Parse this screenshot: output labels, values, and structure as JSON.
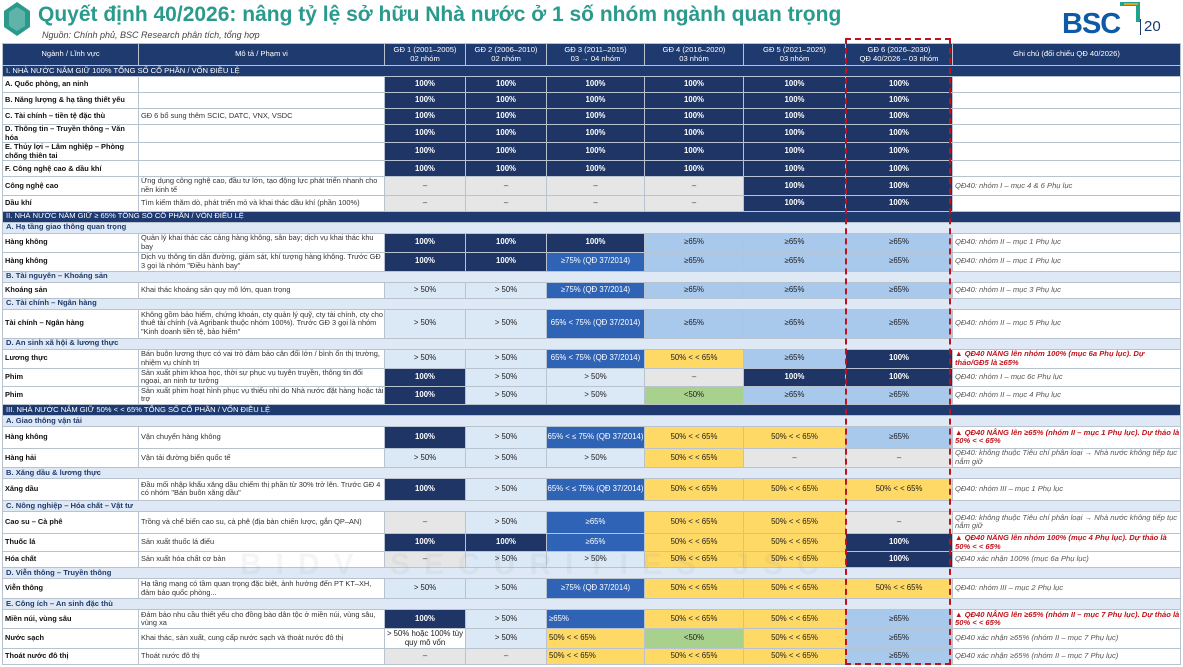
{
  "header": {
    "title": "Quyết định 40/2026: nâng tỷ lệ sở hữu Nhà nước ở 1 số nhóm ngành quan trọng",
    "source": "Nguồn: Chính phủ, BSC Research phân tích, tổng hợp",
    "logo_text": "BSC",
    "page_number": "20",
    "watermark": "BIDV SECURITIES JSC"
  },
  "colors": {
    "title": "#2a9a8c",
    "header_bg": "#1f3a6e",
    "navy": "#1e3566",
    "blue": "#2f63b5",
    "light_blue": "#a8c8ec",
    "yellow": "#ffd966",
    "green": "#a9d18e",
    "highlight_border": "#c0121b"
  },
  "columns": [
    {
      "line1": "Ngành / Lĩnh vực",
      "line2": ""
    },
    {
      "line1": "Mô tả / Phạm vi",
      "line2": ""
    },
    {
      "line1": "GĐ 1 (2001–2005)",
      "line2": "02 nhóm"
    },
    {
      "line1": "GĐ 2 (2006–2010)",
      "line2": "02 nhóm"
    },
    {
      "line1": "GĐ 3 (2011–2015)",
      "line2": "03 → 04 nhóm"
    },
    {
      "line1": "GĐ 4 (2016–2020)",
      "line2": "03 nhóm"
    },
    {
      "line1": "GĐ 5 (2021–2025)",
      "line2": "03 nhóm"
    },
    {
      "line1": "GĐ 6 (2026–2030)",
      "line2": "QĐ 40/2026 – 03 nhóm"
    },
    {
      "line1": "Ghi chú (đối chiếu QĐ 40/2026)",
      "line2": ""
    }
  ],
  "rows": [
    {
      "type": "sec",
      "text": "I. NHÀ NƯỚC NẮM GIỮ 100% TỔNG SỐ CỔ PHẦN / VỐN ĐIỀU LỆ"
    },
    {
      "type": "row",
      "name": "A. Quốc phòng, an ninh",
      "desc": "",
      "cells": [
        [
          "100%",
          "navy"
        ],
        [
          "100%",
          "navy"
        ],
        [
          "100%",
          "navy"
        ],
        [
          "100%",
          "navy"
        ],
        [
          "100%",
          "navy"
        ],
        [
          "100%",
          "navy"
        ]
      ],
      "note": "",
      "red": false
    },
    {
      "type": "row",
      "name": "B. Năng lượng & hạ tầng thiết yếu",
      "desc": "",
      "cells": [
        [
          "100%",
          "navy"
        ],
        [
          "100%",
          "navy"
        ],
        [
          "100%",
          "navy"
        ],
        [
          "100%",
          "navy"
        ],
        [
          "100%",
          "navy"
        ],
        [
          "100%",
          "navy"
        ]
      ],
      "note": "",
      "red": false
    },
    {
      "type": "row",
      "name": "C. Tài chính – tiền tệ đặc thù",
      "desc": "GĐ 6 bổ sung thêm SCIC, DATC, VNX, VSDC",
      "cells": [
        [
          "100%",
          "navy"
        ],
        [
          "100%",
          "navy"
        ],
        [
          "100%",
          "navy"
        ],
        [
          "100%",
          "navy"
        ],
        [
          "100%",
          "navy"
        ],
        [
          "100%",
          "navy"
        ]
      ],
      "note": "",
      "red": false
    },
    {
      "type": "row",
      "name": "D. Thông tin – Truyền thông – Văn hóa",
      "desc": "",
      "cells": [
        [
          "100%",
          "navy"
        ],
        [
          "100%",
          "navy"
        ],
        [
          "100%",
          "navy"
        ],
        [
          "100%",
          "navy"
        ],
        [
          "100%",
          "navy"
        ],
        [
          "100%",
          "navy"
        ]
      ],
      "note": "",
      "red": false
    },
    {
      "type": "row",
      "name": "E. Thủy lợi – Lâm nghiệp – Phòng chống thiên tai",
      "desc": "",
      "cells": [
        [
          "100%",
          "navy"
        ],
        [
          "100%",
          "navy"
        ],
        [
          "100%",
          "navy"
        ],
        [
          "100%",
          "navy"
        ],
        [
          "100%",
          "navy"
        ],
        [
          "100%",
          "navy"
        ]
      ],
      "note": "",
      "red": false
    },
    {
      "type": "row",
      "name": "F. Công nghệ cao & dầu khí",
      "desc": "",
      "cells": [
        [
          "100%",
          "navy"
        ],
        [
          "100%",
          "navy"
        ],
        [
          "100%",
          "navy"
        ],
        [
          "100%",
          "navy"
        ],
        [
          "100%",
          "navy"
        ],
        [
          "100%",
          "navy"
        ]
      ],
      "note": "",
      "red": false
    },
    {
      "type": "row",
      "name": "Công nghệ cao",
      "desc": "Ứng dụng công nghệ cao, đầu tư lớn, tạo động lực phát triển nhanh cho nền kinh tế",
      "cells": [
        [
          "–",
          "grey"
        ],
        [
          "–",
          "grey"
        ],
        [
          "–",
          "grey"
        ],
        [
          "–",
          "grey"
        ],
        [
          "100%",
          "navy"
        ],
        [
          "100%",
          "navy"
        ]
      ],
      "note": "QĐ40: nhóm I – mục 4 & 6 Phụ lục",
      "red": false
    },
    {
      "type": "row",
      "name": "Dầu khí",
      "desc": "Tìm kiếm thăm dò, phát triển mỏ và khai thác dầu khí (phần 100%)",
      "cells": [
        [
          "–",
          "grey"
        ],
        [
          "–",
          "grey"
        ],
        [
          "–",
          "grey"
        ],
        [
          "–",
          "grey"
        ],
        [
          "100%",
          "navy"
        ],
        [
          "100%",
          "navy"
        ]
      ],
      "note": "",
      "red": false
    },
    {
      "type": "sec",
      "text": "II. NHÀ NƯỚC NẮM GIỮ ≥ 65% TỔNG SỐ CỔ PHẦN / VỐN ĐIỀU LỆ"
    },
    {
      "type": "sub",
      "text": "A. Hạ tầng giao thông quan trọng"
    },
    {
      "type": "row",
      "name": "Hàng không",
      "desc": "Quản lý khai thác các cảng hàng không, sân bay; dịch vụ khai thác khu bay",
      "cells": [
        [
          "100%",
          "navy"
        ],
        [
          "100%",
          "navy"
        ],
        [
          "100%",
          "navy"
        ],
        [
          "≥65%",
          "lblue"
        ],
        [
          "≥65%",
          "lblue"
        ],
        [
          "≥65%",
          "lblue"
        ]
      ],
      "note": "QĐ40: nhóm II – mục 1 Phụ lục",
      "red": false
    },
    {
      "type": "row",
      "name": "Hàng không",
      "desc": "Dịch vụ thông tin dẫn đường, giám sát, khí tượng hàng không. Trước GĐ 3 gọi là nhóm \"Điều hành bay\"",
      "cells": [
        [
          "100%",
          "navy"
        ],
        [
          "100%",
          "navy"
        ],
        [
          "≥75% (QĐ 37/2014)",
          "blue"
        ],
        [
          "≥65%",
          "lblue"
        ],
        [
          "≥65%",
          "lblue"
        ],
        [
          "≥65%",
          "lblue"
        ]
      ],
      "note": "QĐ40: nhóm II – mục 1 Phụ lục",
      "red": false
    },
    {
      "type": "sub",
      "text": "B. Tài nguyên – Khoáng sản"
    },
    {
      "type": "row",
      "name": "Khoáng sản",
      "desc": "Khai thác khoáng sản quy mô lớn, quan trọng",
      "cells": [
        [
          "> 50%",
          "pale"
        ],
        [
          "> 50%",
          "pale"
        ],
        [
          "≥75% (QĐ 37/2014)",
          "blue"
        ],
        [
          "≥65%",
          "lblue"
        ],
        [
          "≥65%",
          "lblue"
        ],
        [
          "≥65%",
          "lblue"
        ]
      ],
      "note": "QĐ40: nhóm II – mục 3 Phụ lục",
      "red": false
    },
    {
      "type": "sub",
      "text": "C. Tài chính – Ngân hàng"
    },
    {
      "type": "row",
      "name": "Tài chính – Ngân hàng",
      "desc": "Không gồm bảo hiểm, chứng khoán, cty quản lý quỹ, cty tài chính, cty cho thuê tài chính (và Agribank thuộc nhóm 100%). Trước GĐ 3 gọi là nhóm \"Kinh doanh tiền tệ, bảo hiểm\"",
      "cells": [
        [
          "> 50%",
          "pale"
        ],
        [
          "> 50%",
          "pale"
        ],
        [
          "65% < 75% (QĐ 37/2014)",
          "blue"
        ],
        [
          "≥65%",
          "lblue"
        ],
        [
          "≥65%",
          "lblue"
        ],
        [
          "≥65%",
          "lblue"
        ]
      ],
      "note": "QĐ40: nhóm II – mục 5 Phụ lục",
      "red": false
    },
    {
      "type": "sub",
      "text": "D. An sinh xã hội & lương thực"
    },
    {
      "type": "row",
      "name": "Lương thực",
      "desc": "Bán buôn lương thực có vai trò đảm bảo cân đối lớn / bình ổn thị trường, nhiệm vụ chính trị",
      "cells": [
        [
          "> 50%",
          "pale"
        ],
        [
          "> 50%",
          "pale"
        ],
        [
          "65% < 75% (QĐ 37/2014)",
          "blue"
        ],
        [
          "50% < < 65%",
          "yellow"
        ],
        [
          "≥65%",
          "lblue"
        ],
        [
          "100%",
          "navy"
        ]
      ],
      "note": "▲ QĐ40 NÂNG lên nhóm 100% (mục 6a Phụ lục). Dự thảo/GĐ5 là ≥65%",
      "red": true
    },
    {
      "type": "row",
      "name": "Phim",
      "desc": "Sản xuất phim khoa học, thời sự phục vụ tuyên truyền, thông tin đối ngoại, an ninh tư tưởng",
      "cells": [
        [
          "100%",
          "navy"
        ],
        [
          "> 50%",
          "pale"
        ],
        [
          "> 50%",
          "pale"
        ],
        [
          "–",
          "grey"
        ],
        [
          "100%",
          "navy"
        ],
        [
          "100%",
          "navy"
        ]
      ],
      "note": "QĐ40: nhóm I – mục 6c Phụ lục",
      "red": false
    },
    {
      "type": "row",
      "name": "Phim",
      "desc": "Sản xuất phim hoạt hình phục vụ thiếu nhi do Nhà nước đặt hàng hoặc tài trợ",
      "cells": [
        [
          "100%",
          "navy"
        ],
        [
          "> 50%",
          "pale"
        ],
        [
          "> 50%",
          "pale"
        ],
        [
          "<50%",
          "green"
        ],
        [
          "≥65%",
          "lblue"
        ],
        [
          "≥65%",
          "lblue"
        ]
      ],
      "note": "QĐ40: nhóm II – mục 4 Phụ lục",
      "red": false
    },
    {
      "type": "sec",
      "text": "III. NHÀ NƯỚC NẮM GIỮ 50% < < 65% TỔNG SỐ CỔ PHẦN / VỐN ĐIỀU LỆ"
    },
    {
      "type": "sub",
      "text": "A. Giao thông vận tải"
    },
    {
      "type": "row",
      "name": "Hàng không",
      "desc": "Vận chuyển hàng không",
      "cells": [
        [
          "100%",
          "navy"
        ],
        [
          "> 50%",
          "pale"
        ],
        [
          "65% < ≤ 75% (QĐ 37/2014)",
          "blue"
        ],
        [
          "50% < < 65%",
          "yellow"
        ],
        [
          "50% < < 65%",
          "yellow"
        ],
        [
          "≥65%",
          "lblue"
        ]
      ],
      "note": "▲ QĐ40 NÂNG lên ≥65% (nhóm II – mục 1 Phụ lục). Dự thảo là 50% < < 65%",
      "red": true
    },
    {
      "type": "row",
      "name": "Hàng hải",
      "desc": "Vận tải đường biển quốc tế",
      "cells": [
        [
          "> 50%",
          "pale"
        ],
        [
          "> 50%",
          "pale"
        ],
        [
          "> 50%",
          "pale"
        ],
        [
          "50% < < 65%",
          "yellow"
        ],
        [
          "–",
          "grey"
        ],
        [
          "–",
          "grey"
        ]
      ],
      "note": "QĐ40: không thuộc Tiêu chí phân loại → Nhà nước không tiếp tục nắm giữ",
      "red": false
    },
    {
      "type": "sub",
      "text": "B. Xăng dầu & lương thực"
    },
    {
      "type": "row",
      "name": "Xăng dầu",
      "desc": "Đầu mối nhập khẩu xăng dầu chiếm thị phần từ 30% trở lên. Trước GĐ 4 có nhóm \"Bán buôn xăng dầu\"",
      "cells": [
        [
          "100%",
          "navy"
        ],
        [
          "> 50%",
          "pale"
        ],
        [
          "65% < ≤ 75% (QĐ 37/2014)",
          "blue"
        ],
        [
          "50% < < 65%",
          "yellow"
        ],
        [
          "50% < < 65%",
          "yellow"
        ],
        [
          "50% < < 65%",
          "yellow"
        ]
      ],
      "note": "QĐ40: nhóm III – mục 1 Phụ lục",
      "red": false
    },
    {
      "type": "sub",
      "text": "C. Nông nghiệp – Hóa chất – Vật tư"
    },
    {
      "type": "row",
      "name": "Cao su – Cà phê",
      "desc": "Trồng và chế biến cao su, cà phê (địa bàn chiến lược, gắn QP–AN)",
      "cells": [
        [
          "–",
          "grey"
        ],
        [
          "> 50%",
          "pale"
        ],
        [
          "≥65%",
          "blue"
        ],
        [
          "50% < < 65%",
          "yellow"
        ],
        [
          "50% < < 65%",
          "yellow"
        ],
        [
          "–",
          "grey"
        ]
      ],
      "note": "QĐ40: không thuộc Tiêu chí phân loại → Nhà nước không tiếp tục nắm giữ",
      "red": false
    },
    {
      "type": "row",
      "name": "Thuốc lá",
      "desc": "Sản xuất thuốc lá điếu",
      "cells": [
        [
          "100%",
          "navy"
        ],
        [
          "100%",
          "navy"
        ],
        [
          "≥65%",
          "blue"
        ],
        [
          "50% < < 65%",
          "yellow"
        ],
        [
          "50% < < 65%",
          "yellow"
        ],
        [
          "100%",
          "navy"
        ]
      ],
      "note": "▲ QĐ40 NÂNG lên nhóm 100% (mục 4 Phụ lục). Dự thảo là 50% < < 65%",
      "red": true
    },
    {
      "type": "row",
      "name": "Hóa chất",
      "desc": "Sản xuất hóa chất cơ bản",
      "cells": [
        [
          "–",
          "grey"
        ],
        [
          "> 50%",
          "pale"
        ],
        [
          "> 50%",
          "pale"
        ],
        [
          "50% < < 65%",
          "yellow"
        ],
        [
          "50% < < 65%",
          "yellow"
        ],
        [
          "100%",
          "navy"
        ]
      ],
      "note": "QĐ40 xác nhận 100% (mục 6a Phụ lục)",
      "red": false
    },
    {
      "type": "sub",
      "text": "D. Viễn thông – Truyền thông"
    },
    {
      "type": "row",
      "name": "Viễn thông",
      "desc": "Hạ tầng mạng có tầm quan trọng đặc biệt, ảnh hưởng đến PT KT–XH, đảm bảo quốc phòng...",
      "cells": [
        [
          "> 50%",
          "pale"
        ],
        [
          "> 50%",
          "pale"
        ],
        [
          "≥75% (QĐ 37/2014)",
          "blue"
        ],
        [
          "50% < < 65%",
          "yellow"
        ],
        [
          "50% < < 65%",
          "yellow"
        ],
        [
          "50% < < 65%",
          "yellow"
        ]
      ],
      "note": "QĐ40: nhóm III – mục 2 Phụ lục",
      "red": false
    },
    {
      "type": "sub",
      "text": "E. Công ích – An sinh đặc thù"
    },
    {
      "type": "row",
      "name": "Miền núi, vùng sâu",
      "desc": "Đảm bảo nhu cầu thiết yếu cho đồng bào dân tộc ở miền núi, vùng sâu, vùng xa",
      "cells": [
        [
          "100%",
          "navy"
        ],
        [
          "> 50%",
          "pale"
        ],
        [
          "≥65%",
          "blue-l"
        ],
        [
          "50% < < 65%",
          "yellow"
        ],
        [
          "50% < < 65%",
          "yellow"
        ],
        [
          "≥65%",
          "lblue"
        ]
      ],
      "note": "▲ QĐ40 NÂNG lên ≥65% (nhóm II – mục 7 Phụ lục). Dự thảo là 50% < < 65%",
      "red": true
    },
    {
      "type": "row",
      "name": "Nước sạch",
      "desc": "Khai thác, sản xuất, cung cấp nước sạch và thoát nước đô thị",
      "cells": [
        [
          "> 50% hoặc 100% tùy quy mô vốn",
          "white"
        ],
        [
          "> 50%",
          "pale"
        ],
        [
          "50% < < 65%",
          "yellow-l"
        ],
        [
          "<50%",
          "green"
        ],
        [
          "50% < < 65%",
          "yellow"
        ],
        [
          "≥65%",
          "lblue"
        ]
      ],
      "note": "QĐ40 xác nhận ≥65% (nhóm II – mục 7 Phụ lục)",
      "red": false
    },
    {
      "type": "row",
      "name": "Thoát nước đô thị",
      "desc": "Thoát nước đô thị",
      "cells": [
        [
          "–",
          "grey"
        ],
        [
          "–",
          "grey"
        ],
        [
          "50% < < 65%",
          "yellow-l"
        ],
        [
          "50% < < 65%",
          "yellow"
        ],
        [
          "50% < < 65%",
          "yellow"
        ],
        [
          "≥65%",
          "lblue"
        ]
      ],
      "note": "QĐ40 xác nhận ≥65% (nhóm II – mục 7 Phụ lục)",
      "red": false
    }
  ]
}
